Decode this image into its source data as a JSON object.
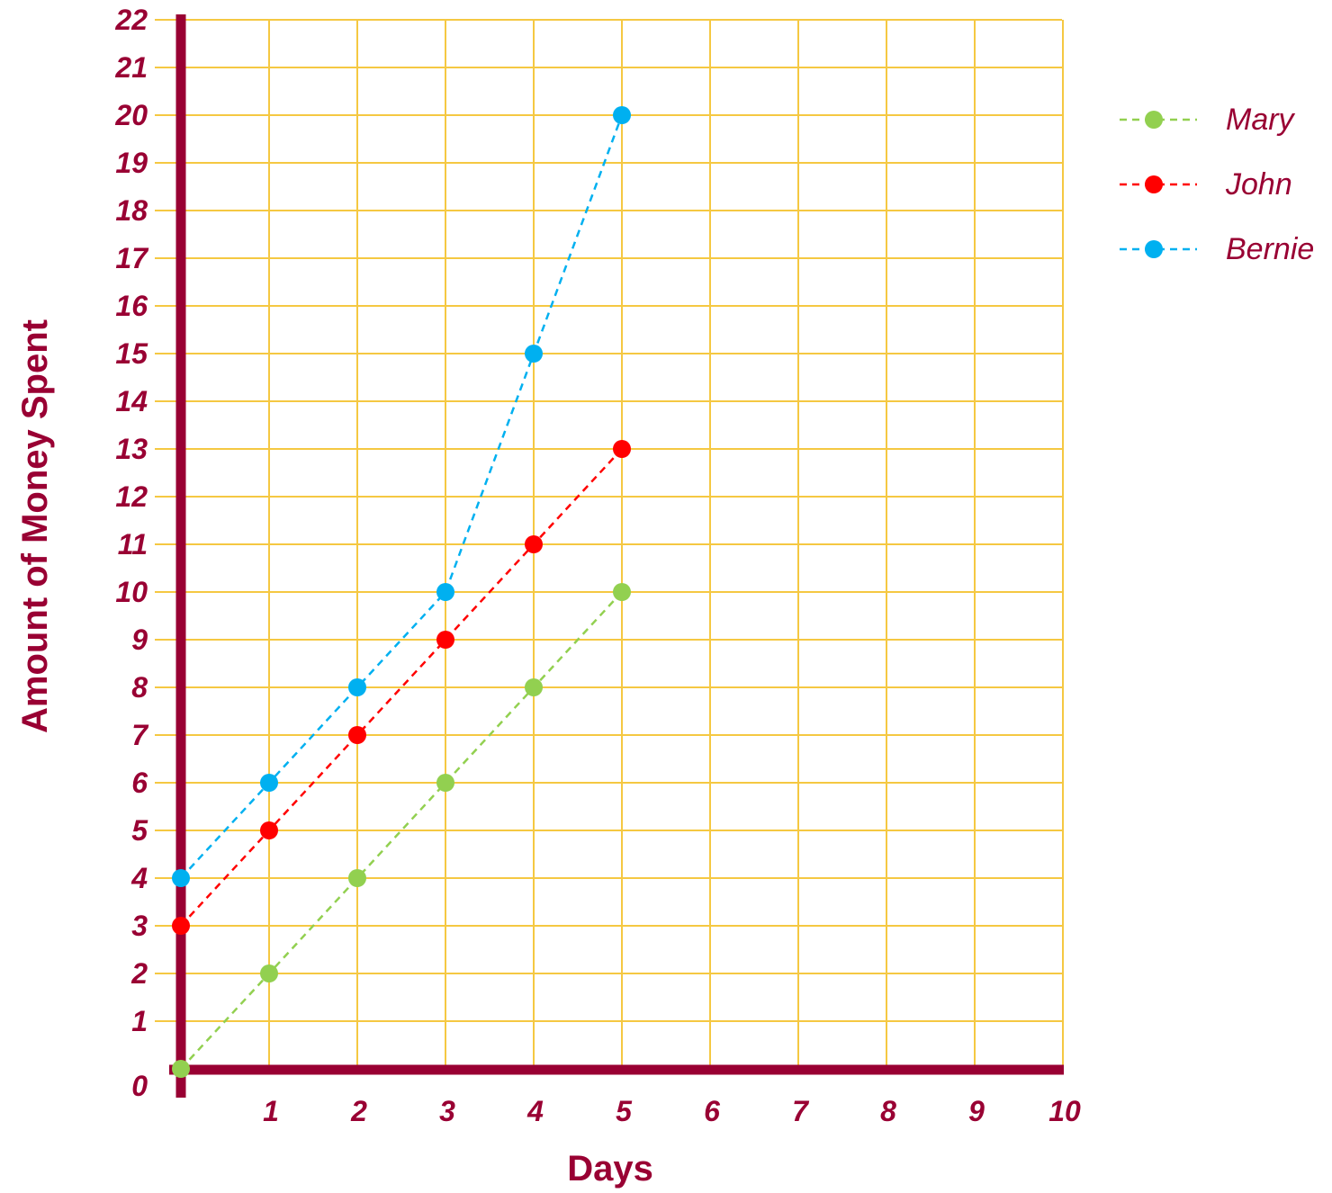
{
  "chart_data": {
    "type": "line",
    "xlabel": "Days",
    "ylabel": "Amount of Money Spent",
    "xlim": [
      0,
      10
    ],
    "ylim": [
      0,
      22
    ],
    "x_ticks": [
      "1",
      "2",
      "3",
      "4",
      "5",
      "6",
      "7",
      "8",
      "9",
      "10"
    ],
    "y_ticks": [
      "0",
      "1",
      "2",
      "3",
      "4",
      "5",
      "6",
      "7",
      "8",
      "9",
      "10",
      "11",
      "12",
      "13",
      "14",
      "15",
      "16",
      "17",
      "18",
      "19",
      "20",
      "21",
      "22"
    ],
    "grid": true,
    "legend_position": "top-right",
    "series": [
      {
        "name": "Mary",
        "color": "#92d050",
        "x": [
          0,
          1,
          2,
          3,
          4,
          5
        ],
        "y": [
          0,
          2,
          4,
          6,
          8,
          10
        ]
      },
      {
        "name": "John",
        "color": "#ff0000",
        "x": [
          0,
          1,
          2,
          3,
          4,
          5
        ],
        "y": [
          3,
          5,
          7,
          9,
          11,
          13
        ]
      },
      {
        "name": "Bernie",
        "color": "#00b0f0",
        "x": [
          0,
          1,
          2,
          3,
          4,
          5
        ],
        "y": [
          4,
          6,
          8,
          10,
          15,
          20
        ]
      }
    ]
  },
  "colors": {
    "axis": "#990033",
    "grid": "#f5c842",
    "text": "#990033"
  }
}
